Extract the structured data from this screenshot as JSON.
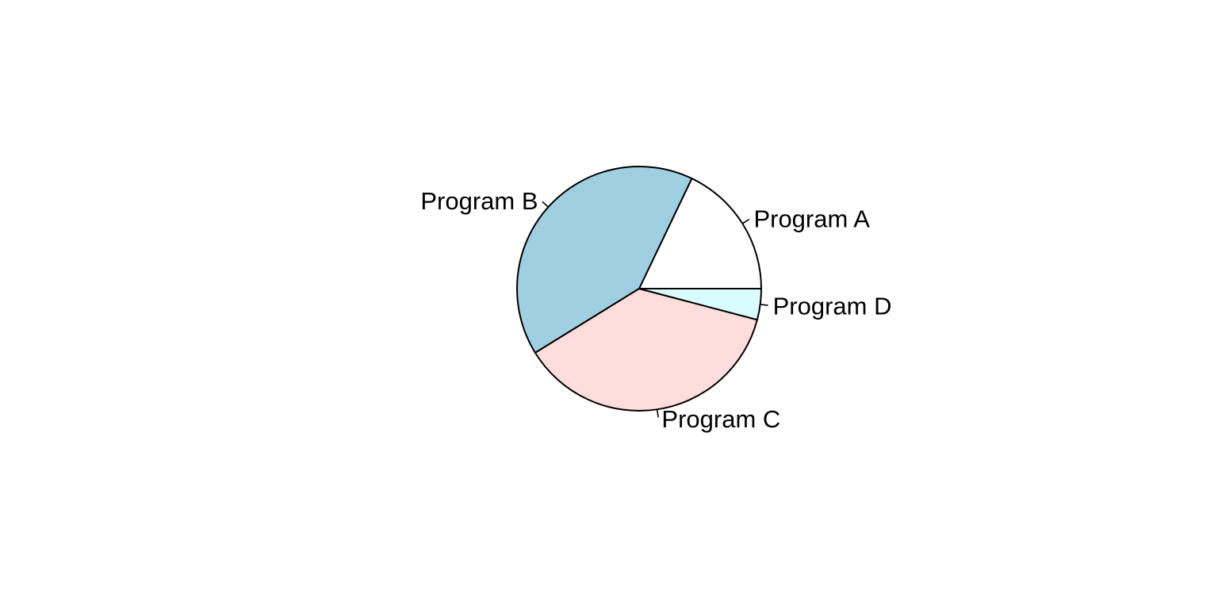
{
  "chart_data": {
    "type": "pie",
    "title": "",
    "slices": [
      {
        "label": "Program A",
        "value": 17.9,
        "color": "#ffffff"
      },
      {
        "label": "Program B",
        "value": 40.9,
        "color": "#a0cfe1"
      },
      {
        "label": "Program C",
        "value": 37.1,
        "color": "#ffdddc"
      },
      {
        "label": "Program D",
        "value": 4.1,
        "color": "#d9fdfd"
      }
    ],
    "start_angle_deg": 0,
    "direction": "counterclockwise",
    "legend": "none"
  }
}
